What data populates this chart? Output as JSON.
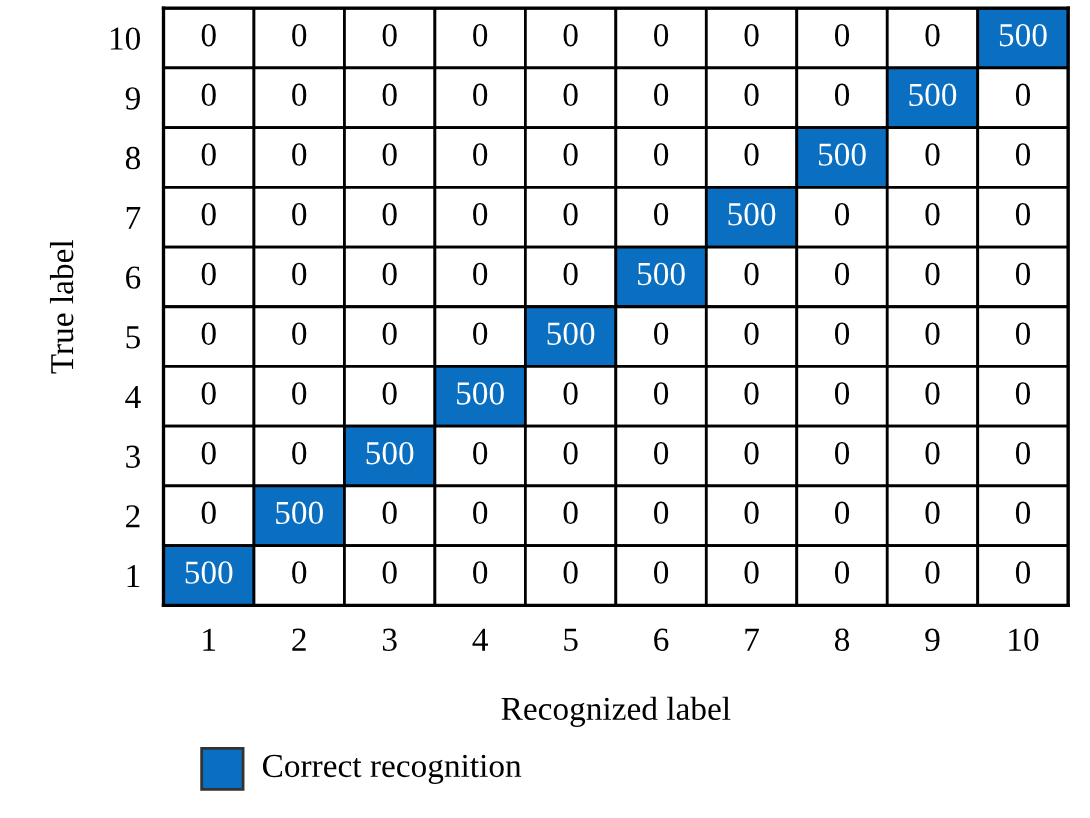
{
  "chart_data": {
    "type": "heatmap",
    "xlabel": "Recognized label",
    "ylabel": "True label",
    "categories": [
      "1",
      "2",
      "3",
      "4",
      "5",
      "6",
      "7",
      "8",
      "9",
      "10"
    ],
    "y_categories": [
      "10",
      "9",
      "8",
      "7",
      "6",
      "5",
      "4",
      "3",
      "2",
      "1"
    ],
    "cells": [
      [
        0,
        0,
        0,
        0,
        0,
        0,
        0,
        0,
        0,
        500
      ],
      [
        0,
        0,
        0,
        0,
        0,
        0,
        0,
        0,
        500,
        0
      ],
      [
        0,
        0,
        0,
        0,
        0,
        0,
        0,
        500,
        0,
        0
      ],
      [
        0,
        0,
        0,
        0,
        0,
        0,
        500,
        0,
        0,
        0
      ],
      [
        0,
        0,
        0,
        0,
        0,
        500,
        0,
        0,
        0,
        0
      ],
      [
        0,
        0,
        0,
        0,
        500,
        0,
        0,
        0,
        0,
        0
      ],
      [
        0,
        0,
        0,
        500,
        0,
        0,
        0,
        0,
        0,
        0
      ],
      [
        0,
        0,
        500,
        0,
        0,
        0,
        0,
        0,
        0,
        0
      ],
      [
        0,
        500,
        0,
        0,
        0,
        0,
        0,
        0,
        0,
        0
      ],
      [
        500,
        0,
        0,
        0,
        0,
        0,
        0,
        0,
        0,
        0
      ]
    ],
    "color": "#0b6fc1",
    "annotations": [
      "Correct recognition"
    ],
    "data_labels": true
  }
}
